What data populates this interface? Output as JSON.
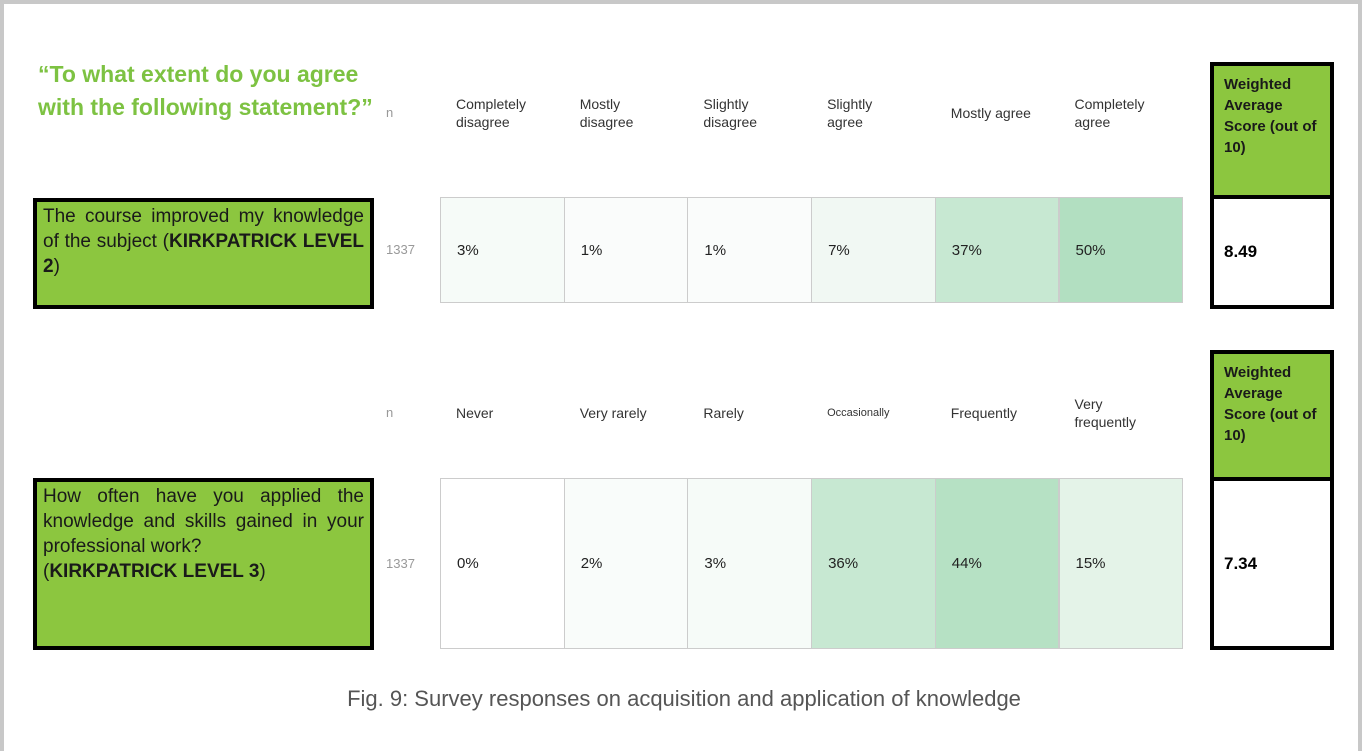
{
  "title": "“To what extent do you agree with the following statement?”",
  "sections": [
    {
      "statement_parts": [
        "The course improved my knowledge of the subject (",
        "KIRKPATRICK LEVEL 2",
        ")"
      ],
      "n_header": "n",
      "columns": [
        "Completely disagree",
        "Mostly disagree",
        "Slightly disagree",
        "Slightly agree",
        "Mostly agree",
        "Completely agree"
      ],
      "n": "1337",
      "values": [
        "3%",
        "1%",
        "1%",
        "7%",
        "37%",
        "50%"
      ],
      "score_header": "Weighted Average Score (out of 10)",
      "score": "8.49"
    },
    {
      "statement_parts": [
        "How often have you applied the knowledge and skills gained in your professional work?",
        "(",
        "KIRKPATRICK LEVEL 3",
        ")"
      ],
      "n_header": "n",
      "columns": [
        "Never",
        "Very rarely",
        "Rarely",
        "Occasionally",
        "Frequently",
        "Very frequently"
      ],
      "n": "1337",
      "values": [
        "0%",
        "2%",
        "3%",
        "36%",
        "44%",
        "15%"
      ],
      "score_header": "Weighted Average Score (out of 10)",
      "score": "7.34"
    }
  ],
  "caption": "Fig. 9: Survey responses on acquisition and application of knowledge"
}
